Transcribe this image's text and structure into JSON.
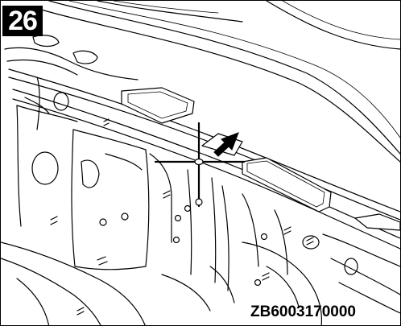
{
  "step_number": "26",
  "figure_code": "ZB6003170000",
  "icons": {
    "pointer": "arrow-icon",
    "target": "crosshair-icon"
  }
}
